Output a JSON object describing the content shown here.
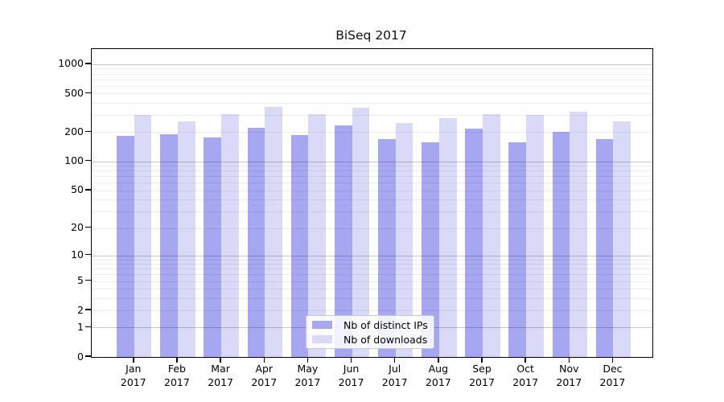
{
  "title": "BiSeq 2017",
  "colors": {
    "distinct_ips": "#a7a7f1",
    "downloads": "#dadaf8",
    "grid_major": "#c7c7c7",
    "grid_minor": "#ededed",
    "spine": "#000000"
  },
  "chart_data": {
    "type": "bar",
    "title": "BiSeq 2017",
    "scale": "log1p",
    "grid": "both",
    "legend_position": "lower-center-inside",
    "categories": [
      "Jan",
      "Feb",
      "Mar",
      "Apr",
      "May",
      "Jun",
      "Jul",
      "Aug",
      "Sep",
      "Oct",
      "Nov",
      "Dec"
    ],
    "year": "2017",
    "series": [
      {
        "name": "Nb of distinct IPs",
        "values": [
          182,
          189,
          178,
          220,
          188,
          233,
          170,
          157,
          219,
          159,
          201,
          171
        ]
      },
      {
        "name": "Nb of downloads",
        "values": [
          300,
          258,
          304,
          365,
          304,
          360,
          248,
          280,
          308,
          300,
          328,
          261
        ]
      }
    ],
    "yticks": [
      0,
      1,
      2,
      5,
      10,
      20,
      50,
      100,
      200,
      500,
      1000
    ],
    "ylim": [
      0,
      1430
    ],
    "xlabel": "",
    "ylabel": ""
  }
}
